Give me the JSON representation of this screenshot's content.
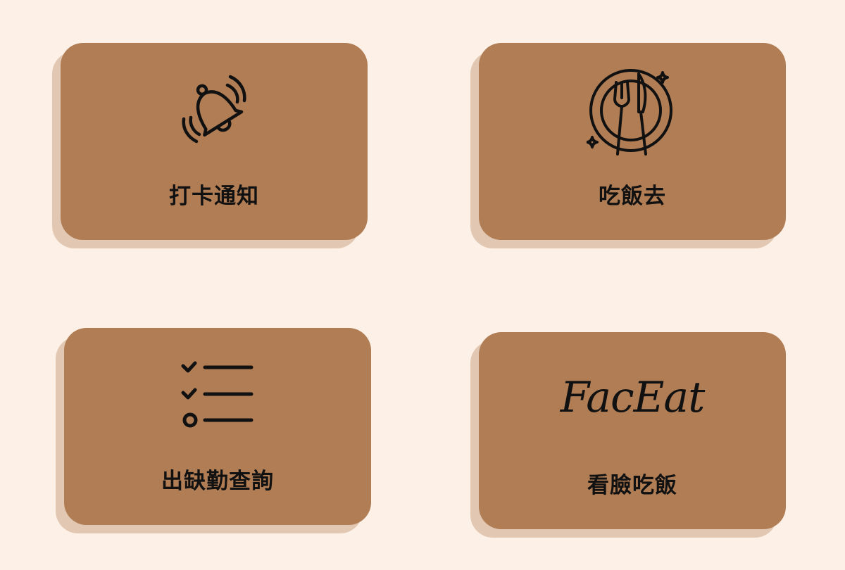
{
  "colors": {
    "page_bg": "#fdf0e7",
    "card": "#b07d55",
    "card_shadow": "#e2c8b2",
    "ink": "#111111"
  },
  "cards": [
    {
      "label": "打卡通知",
      "icon": "bell-ringing-icon"
    },
    {
      "label": "吃飯去",
      "icon": "plate-fork-knife-icon"
    },
    {
      "label": "出缺勤查詢",
      "icon": "checklist-icon"
    },
    {
      "label": "看臉吃飯",
      "icon": "faceat-logo",
      "logo_text": "FacEat"
    }
  ]
}
